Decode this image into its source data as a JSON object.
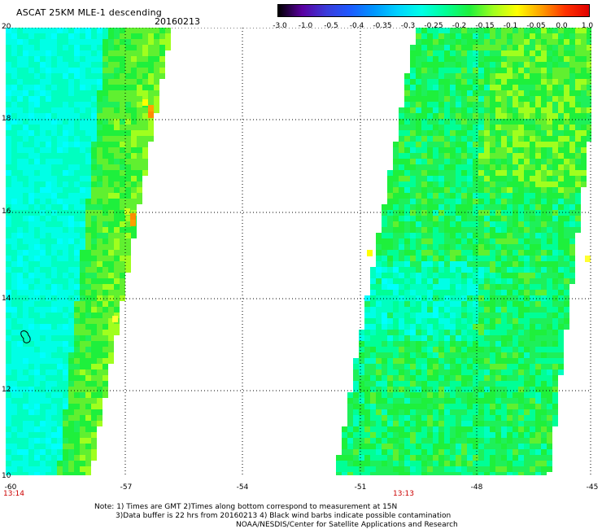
{
  "header": {
    "title": "ASCAT 25KM MLE-1 descending",
    "date": "20160213"
  },
  "colorbar": {
    "labels": [
      "-3.0",
      "-1.0",
      "-0.5",
      "-0.4",
      "-0.35",
      "-0.3",
      "-0.25",
      "-0.2",
      "-0.15",
      "-0.1",
      "-0.05",
      "0.0",
      "1.0"
    ],
    "colors": [
      "#000000",
      "#5a00a0",
      "#3b3bd9",
      "#1e5aff",
      "#0096ff",
      "#00d2ff",
      "#00ffe6",
      "#00ff96",
      "#1ef03c",
      "#a0ff1e",
      "#ffff00",
      "#ffa000",
      "#ff3200",
      "#e10000"
    ]
  },
  "map": {
    "lat_labels": [
      "20",
      "18",
      "16",
      "14",
      "12",
      "10"
    ],
    "lon_labels": [
      "-60",
      "-57",
      "-54",
      "-51",
      "-48",
      "-45"
    ],
    "times": [
      "13:14",
      "13:13"
    ]
  },
  "notes": {
    "line1": "Note: 1) Times are GMT 2)Times along bottom correspond to measurement at 15N",
    "line2": "3)Data buffer is 22 hrs from 20160213 4) Black wind barbs indicate possible contamination",
    "line3": "NOAA/NESDIS/Center for Satellite Applications and Research"
  }
}
